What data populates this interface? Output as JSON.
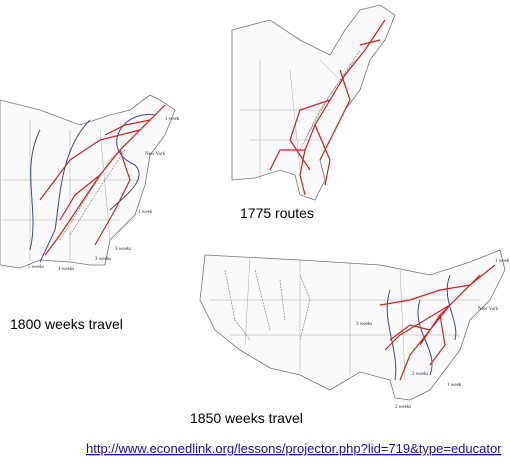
{
  "maps": [
    {
      "caption": "1775 routes",
      "labels": []
    },
    {
      "caption": "1800 weeks travel",
      "labels": [
        "1 week",
        "New York",
        "1 week",
        "3 weeks",
        "3 weeks",
        "5 weeks",
        "4 weeks"
      ]
    },
    {
      "caption": "1850 weeks travel",
      "labels": [
        "1 week",
        "New York",
        "3 weeks",
        "2 weeks",
        "1 week",
        "2 weeks"
      ]
    }
  ],
  "link": "http://www.econedlink.org/lessons/projector.php?lid=719&type=educator"
}
